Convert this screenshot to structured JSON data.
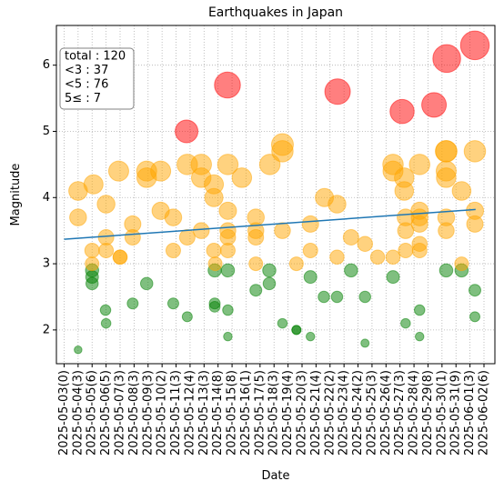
{
  "chart_data": {
    "type": "scatter",
    "title": "Earthquakes in Japan",
    "x_label": "Date",
    "y_label": "Magnitude",
    "xlim": [
      -0.55,
      30.78
    ],
    "ylim": [
      1.49,
      6.6
    ],
    "xticks": [
      {
        "value": 0,
        "label": "2025-05-03(0)"
      },
      {
        "value": 1,
        "label": "2025-05-04(3)"
      },
      {
        "value": 2,
        "label": "2025-05-05(6)"
      },
      {
        "value": 3,
        "label": "2025-05-06(5)"
      },
      {
        "value": 4,
        "label": "2025-05-07(3)"
      },
      {
        "value": 5,
        "label": "2025-05-08(3)"
      },
      {
        "value": 6,
        "label": "2025-05-09(3)"
      },
      {
        "value": 7,
        "label": "2025-05-10(2)"
      },
      {
        "value": 8,
        "label": "2025-05-11(3)"
      },
      {
        "value": 9,
        "label": "2025-05-12(4)"
      },
      {
        "value": 10,
        "label": "2025-05-13(3)"
      },
      {
        "value": 11,
        "label": "2025-05-14(8)"
      },
      {
        "value": 12,
        "label": "2025-05-15(8)"
      },
      {
        "value": 13,
        "label": "2025-05-16(1)"
      },
      {
        "value": 14,
        "label": "2025-05-17(5)"
      },
      {
        "value": 15,
        "label": "2025-05-18(3)"
      },
      {
        "value": 16,
        "label": "2025-05-19(4)"
      },
      {
        "value": 17,
        "label": "2025-05-20(3)"
      },
      {
        "value": 18,
        "label": "2025-05-21(4)"
      },
      {
        "value": 19,
        "label": "2025-05-22(2)"
      },
      {
        "value": 20,
        "label": "2025-05-23(4)"
      },
      {
        "value": 21,
        "label": "2025-05-24(2)"
      },
      {
        "value": 22,
        "label": "2025-05-25(3)"
      },
      {
        "value": 23,
        "label": "2025-05-26(4)"
      },
      {
        "value": 24,
        "label": "2025-05-27(3)"
      },
      {
        "value": 25,
        "label": "2025-05-28(4)"
      },
      {
        "value": 26,
        "label": "2025-05-29(8)"
      },
      {
        "value": 27,
        "label": "2025-05-30(1)"
      },
      {
        "value": 28,
        "label": "2025-05-31(9)"
      },
      {
        "value": 29,
        "label": "2025-06-01(3)"
      },
      {
        "value": 30,
        "label": "2025-06-02(6)"
      }
    ],
    "yticks": [
      2,
      3,
      4,
      5,
      6
    ],
    "grid": true,
    "annotation": [
      "total : 120",
      "<3 : 37",
      "<5 : 76",
      "5≤ : 7"
    ],
    "series": [
      {
        "color": "green",
        "x": [
          1.0,
          2.0,
          2.0,
          2.0,
          2.96,
          3.0,
          4.9,
          5.9,
          7.8,
          8.8,
          10.76,
          10.76,
          10.76,
          11.7,
          11.7,
          11.7,
          14.66,
          14.66,
          13.7,
          15.6,
          16.6,
          16.6,
          17.6,
          17.6,
          18.56,
          19.5,
          20.5,
          21.5,
          21.5,
          23.5,
          24.4,
          25.4,
          25.4,
          27.3,
          28.4,
          29.35,
          29.35
        ],
        "values": [
          1.7,
          2.9,
          2.8,
          2.7,
          2.3,
          2.1,
          2.4,
          2.7,
          2.4,
          2.2,
          2.9,
          2.4,
          2.35,
          2.9,
          2.3,
          1.9,
          2.9,
          2.7,
          2.6,
          2.1,
          2.0,
          2.0,
          1.9,
          2.8,
          2.5,
          2.5,
          2.9,
          1.8,
          2.5,
          2.8,
          2.1,
          1.9,
          2.3,
          2.9,
          2.9,
          2.6,
          2.2
        ]
      },
      {
        "color": "orange",
        "x": [
          1.0,
          1.0,
          2.1,
          2.0,
          2.0,
          3.0,
          3.0,
          3.0,
          3.9,
          4.0,
          4.0,
          4.9,
          4.9,
          5.9,
          5.9,
          6.9,
          6.9,
          7.8,
          7.8,
          8.8,
          8.8,
          9.8,
          9.8,
          9.8,
          10.7,
          10.7,
          10.7,
          10.8,
          11.7,
          11.7,
          11.7,
          11.7,
          11.7,
          12.7,
          13.7,
          13.7,
          13.7,
          13.7,
          14.7,
          15.6,
          15.6,
          15.6,
          16.6,
          17.6,
          17.6,
          18.6,
          19.5,
          19.5,
          20.5,
          21.5,
          22.4,
          23.5,
          23.5,
          23.5,
          24.3,
          24.3,
          24.4,
          24.4,
          24.4,
          25.4,
          25.4,
          25.4,
          25.4,
          25.4,
          25.4,
          27.3,
          27.3,
          27.3,
          27.3,
          27.3,
          27.3,
          28.4,
          28.4,
          29.35,
          29.35,
          29.35
        ],
        "values": [
          4.1,
          3.7,
          4.2,
          3.2,
          3.0,
          3.9,
          3.4,
          3.2,
          4.4,
          3.1,
          3.1,
          3.6,
          3.4,
          4.4,
          4.3,
          4.4,
          3.8,
          3.7,
          3.2,
          4.5,
          3.4,
          4.5,
          4.3,
          3.5,
          4.2,
          4.0,
          3.2,
          3.0,
          4.5,
          3.8,
          3.5,
          3.4,
          3.2,
          4.3,
          3.7,
          3.5,
          3.4,
          3.0,
          4.5,
          4.8,
          4.7,
          3.5,
          3.0,
          3.6,
          3.2,
          4.0,
          3.9,
          3.1,
          3.4,
          3.3,
          3.1,
          4.5,
          4.4,
          3.1,
          4.3,
          4.1,
          3.7,
          3.5,
          3.2,
          4.5,
          3.8,
          3.7,
          3.6,
          3.3,
          3.2,
          4.7,
          4.7,
          4.4,
          4.3,
          3.7,
          3.5,
          4.1,
          3.0,
          4.7,
          3.8,
          3.6
        ]
      },
      {
        "color": "red",
        "x": [
          8.75,
          11.67,
          19.54,
          24.15,
          26.43,
          27.34,
          29.35
        ],
        "values": [
          5.0,
          5.7,
          5.6,
          5.3,
          5.4,
          6.1,
          6.3
        ]
      }
    ],
    "trend": {
      "color": "#1f77b4",
      "x": [
        0,
        29.4
      ],
      "values": [
        3.37,
        3.82
      ]
    }
  }
}
